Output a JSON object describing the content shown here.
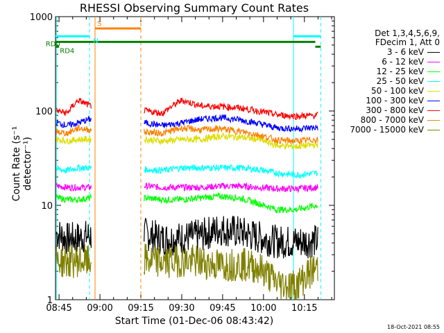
{
  "chart_data": {
    "type": "line",
    "title": "RHESSI Observing Summary Count Rates",
    "xlabel": "Start Time (01-Dec-06 08:43:42)",
    "ylabel": "Count Rate (s⁻¹ detector⁻¹)",
    "yscale": "log",
    "ylim": [
      1,
      1000
    ],
    "xlim_minutes": [
      523.7,
      626
    ],
    "yticks": [
      "1",
      "10",
      "100",
      "1000"
    ],
    "xticks": [
      {
        "label": "08:45",
        "minutes": 525
      },
      {
        "label": "09:00",
        "minutes": 540
      },
      {
        "label": "09:15",
        "minutes": 555
      },
      {
        "label": "09:30",
        "minutes": 570
      },
      {
        "label": "09:45",
        "minutes": 585
      },
      {
        "label": "10:00",
        "minutes": 600
      },
      {
        "label": "10:15",
        "minutes": 615
      }
    ],
    "legend": {
      "header": [
        "Det 1,3,4,5,6,9,",
        "FDecim 1, Att 0"
      ],
      "placement": "right"
    },
    "series": [
      {
        "name": "3 - 6 keV",
        "color": "#000000",
        "values": [
          5,
          4.4,
          4.5,
          4.8,
          5.6,
          5.2,
          4.6,
          4.1,
          4.1,
          4.2
        ]
      },
      {
        "name": "6 - 12 keV",
        "color": "#ff00ff",
        "values": [
          16,
          15.5,
          15.5,
          15.5,
          16,
          16,
          15.5,
          15,
          15,
          15.5
        ]
      },
      {
        "name": "12 - 25 keV",
        "color": "#00ff00",
        "values": [
          12,
          11.5,
          11.5,
          12,
          12.5,
          12,
          10.5,
          9,
          9,
          10
        ]
      },
      {
        "name": "25 - 50 keV",
        "color": "#00ffff",
        "values": [
          24,
          23.5,
          25,
          25,
          25,
          25,
          24,
          22,
          21,
          22
        ]
      },
      {
        "name": "50 - 100 keV",
        "color": "#dddd00",
        "values": [
          50,
          48,
          50,
          50,
          54,
          53,
          50,
          43,
          42,
          44
        ]
      },
      {
        "name": "100 - 300 keV",
        "color": "#0000ff",
        "values": [
          75,
          70,
          75,
          82,
          85,
          81,
          74,
          66,
          65,
          67
        ]
      },
      {
        "name": "300 - 800 keV",
        "color": "#ff0000",
        "values": [
          100,
          95,
          130,
          113,
          112,
          108,
          100,
          91,
          88,
          90
        ]
      },
      {
        "name": "800 - 7000 keV",
        "color": "#ff8000",
        "values": [
          60,
          58,
          66,
          63,
          65,
          61,
          56,
          49,
          48,
          50
        ]
      },
      {
        "name": "7000 - 15000 keV",
        "color": "#808000",
        "values": [
          2.6,
          2.5,
          2.6,
          2.5,
          2.3,
          2.4,
          2.2,
          1.5,
          1.4,
          2.2
        ]
      }
    ],
    "data_segments_minutes": [
      [
        524.0,
        536.8
      ],
      [
        556.2,
        620.0
      ]
    ],
    "segment_sample_minutes": [
      [
        524.5,
        528,
        532,
        536.5
      ],
      [
        556.5,
        563,
        570,
        577,
        584,
        591,
        598,
        605,
        612,
        619.5
      ]
    ],
    "flags": [
      {
        "name": "S",
        "color": "#ff8000",
        "start_min": 538.2,
        "end_min": 555.0,
        "level": 750
      },
      {
        "name": "N",
        "color": "#00ffff",
        "start_min": 523.7,
        "end_min": 536.2,
        "level": 620
      },
      {
        "name": "N",
        "color": "#00ffff",
        "start_min": 611.0,
        "end_min": 621.0,
        "level": 620
      },
      {
        "name": "RD0",
        "color": "#008000",
        "start_min": 523.7,
        "end_min": 619.0,
        "level": 540
      },
      {
        "name": "RD4",
        "color": "#008000",
        "start_min": 523.7,
        "end_min": 525.0,
        "level": 480
      },
      {
        "name": "RD4",
        "color": "#008000",
        "start_min": 619.0,
        "end_min": 621.0,
        "level": 480
      }
    ],
    "vlines": [
      {
        "min": 524.0,
        "color": "#00ffff",
        "style": "solid"
      },
      {
        "min": 536.2,
        "color": "#00ffff",
        "style": "dashed"
      },
      {
        "min": 538.2,
        "color": "#ff8000",
        "style": "solid"
      },
      {
        "min": 555.0,
        "color": "#ff8000",
        "style": "dashed"
      },
      {
        "min": 611.0,
        "color": "#00ffff",
        "style": "solid"
      },
      {
        "min": 621.0,
        "color": "#00ffff",
        "style": "dashed"
      }
    ]
  },
  "legend_lines": [
    "Det 1,3,4,5,6,9,",
    "FDecim 1, Att 0"
  ],
  "timestamp": "18-Oct-2021 08:55"
}
